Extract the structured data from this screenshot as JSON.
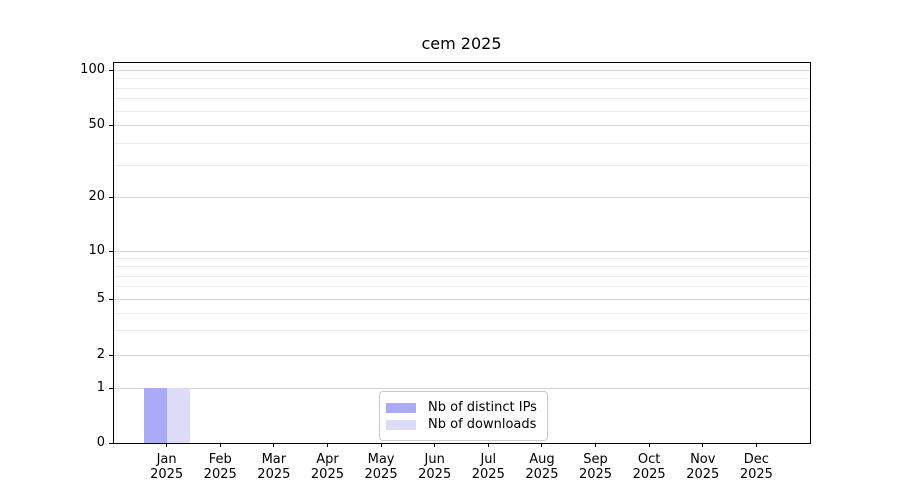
{
  "chart_data": {
    "type": "bar",
    "title": "cem 2025",
    "x_categories": [
      {
        "month": "Jan",
        "year": "2025"
      },
      {
        "month": "Feb",
        "year": "2025"
      },
      {
        "month": "Mar",
        "year": "2025"
      },
      {
        "month": "Apr",
        "year": "2025"
      },
      {
        "month": "May",
        "year": "2025"
      },
      {
        "month": "Jun",
        "year": "2025"
      },
      {
        "month": "Jul",
        "year": "2025"
      },
      {
        "month": "Aug",
        "year": "2025"
      },
      {
        "month": "Sep",
        "year": "2025"
      },
      {
        "month": "Oct",
        "year": "2025"
      },
      {
        "month": "Nov",
        "year": "2025"
      },
      {
        "month": "Dec",
        "year": "2025"
      }
    ],
    "series": [
      {
        "name": "Nb of distinct IPs",
        "color": "#aaaaf6",
        "values": [
          1,
          0,
          0,
          0,
          0,
          0,
          0,
          0,
          0,
          0,
          0,
          0
        ]
      },
      {
        "name": "Nb of downloads",
        "color": "#dcdcf9",
        "values": [
          1,
          0,
          0,
          0,
          0,
          0,
          0,
          0,
          0,
          0,
          0,
          0
        ]
      }
    ],
    "y_axis": {
      "scale": "symlog",
      "major_ticks": [
        0,
        1,
        2,
        5,
        10,
        20,
        50,
        100
      ],
      "minor_ticks": [
        3,
        4,
        6,
        7,
        8,
        9,
        30,
        40,
        60,
        70,
        80,
        90
      ],
      "range": [
        0,
        110
      ]
    },
    "grid": true,
    "legend_position": "lower center"
  }
}
